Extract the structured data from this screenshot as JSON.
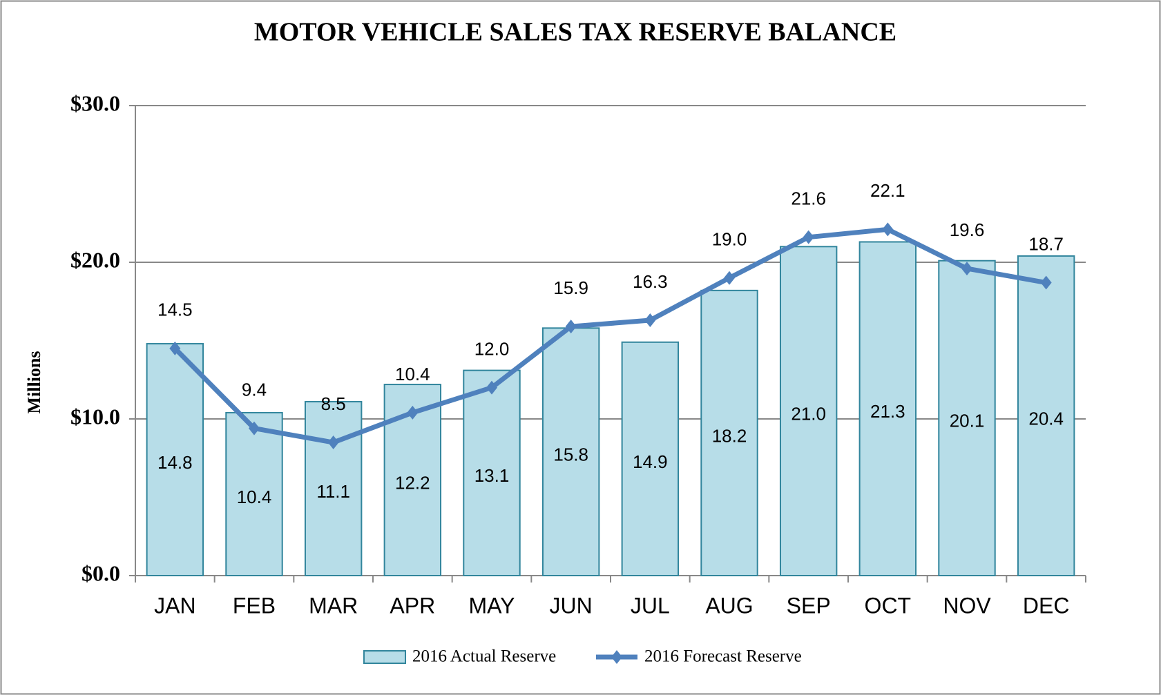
{
  "chart_data": {
    "type": "bar",
    "title": "MOTOR VEHICLE  SALES  TAX  RESERVE  BALANCE",
    "y_label": "Millions",
    "categories": [
      "JAN",
      "FEB",
      "MAR",
      "APR",
      "MAY",
      "JUN",
      "JUL",
      "AUG",
      "SEP",
      "OCT",
      "NOV",
      "DEC"
    ],
    "series": [
      {
        "name": "2016 Actual Reserve",
        "type": "bar",
        "color": "#b7dde8",
        "edge_color": "#31859c",
        "values": [
          14.8,
          10.4,
          11.1,
          12.2,
          13.1,
          15.8,
          14.9,
          18.2,
          21.0,
          21.3,
          20.1,
          20.4
        ],
        "value_labels": [
          "14.8",
          "10.4",
          "11.1",
          "12.2",
          "13.1",
          "15.8",
          "14.9",
          "18.2",
          "21.0",
          "21.3",
          "20.1",
          "20.4"
        ]
      },
      {
        "name": "2016 Forecast Reserve",
        "type": "line",
        "color": "#4f81bd",
        "values": [
          14.5,
          9.4,
          8.5,
          10.4,
          12.0,
          15.9,
          16.3,
          19.0,
          21.6,
          22.1,
          19.6,
          18.7
        ],
        "value_labels": [
          "14.5",
          "9.4",
          "8.5",
          "10.4",
          "12.0",
          "15.9",
          "16.3",
          "19.0",
          "21.6",
          "22.1",
          "19.6",
          "18.7"
        ]
      }
    ],
    "ylim": [
      0,
      30
    ],
    "yticks": [
      {
        "value": 0,
        "label": "$0.0"
      },
      {
        "value": 10,
        "label": "$10.0"
      },
      {
        "value": 20,
        "label": "$20.0"
      },
      {
        "value": 30,
        "label": "$30.0"
      }
    ],
    "grid": true,
    "legend": "bottom"
  }
}
